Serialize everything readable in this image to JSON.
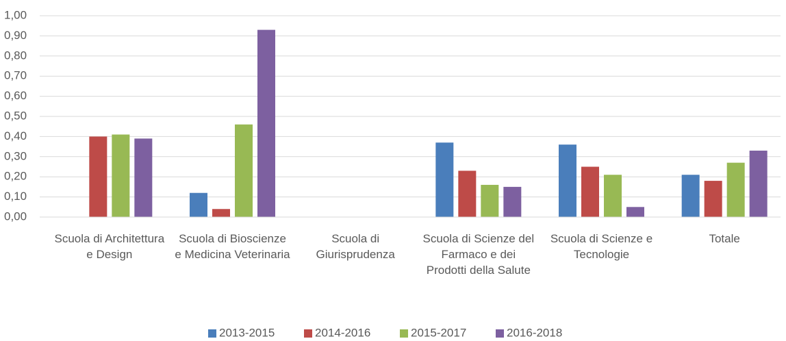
{
  "chart_data": {
    "type": "bar",
    "categories": [
      "Scuola di Architettura e Design",
      "Scuola di Bioscienze e Medicina Veterinaria",
      "Scuola di Giurisprudenza",
      "Scuola di Scienze del Farmaco e dei Prodotti della Salute",
      "Scuola di Scienze e Tecnologie",
      "Totale"
    ],
    "series": [
      {
        "name": "2013-2015",
        "color": "#4a7ebb",
        "values": [
          0,
          0.12,
          0,
          0.37,
          0.36,
          0.21
        ]
      },
      {
        "name": "2014-2016",
        "color": "#be4b48",
        "values": [
          0.4,
          0.04,
          0,
          0.23,
          0.25,
          0.18
        ]
      },
      {
        "name": "2015-2017",
        "color": "#98b954",
        "values": [
          0.41,
          0.46,
          0,
          0.16,
          0.21,
          0.27
        ]
      },
      {
        "name": "2016-2018",
        "color": "#7d60a0",
        "values": [
          0.39,
          0.93,
          0,
          0.15,
          0.05,
          0.33
        ]
      }
    ],
    "ylim": [
      0,
      1
    ],
    "yticks": [
      {
        "value": 0,
        "label": "0,00"
      },
      {
        "value": 0.1,
        "label": "0,10"
      },
      {
        "value": 0.2,
        "label": "0,20"
      },
      {
        "value": 0.3,
        "label": "0,30"
      },
      {
        "value": 0.4,
        "label": "0,40"
      },
      {
        "value": 0.5,
        "label": "0,50"
      },
      {
        "value": 0.6,
        "label": "0,60"
      },
      {
        "value": 0.7,
        "label": "0,70"
      },
      {
        "value": 0.8,
        "label": "0,80"
      },
      {
        "value": 0.9,
        "label": "0,90"
      },
      {
        "value": 1,
        "label": "1,00"
      }
    ],
    "grid": true,
    "legend": "bottom"
  }
}
